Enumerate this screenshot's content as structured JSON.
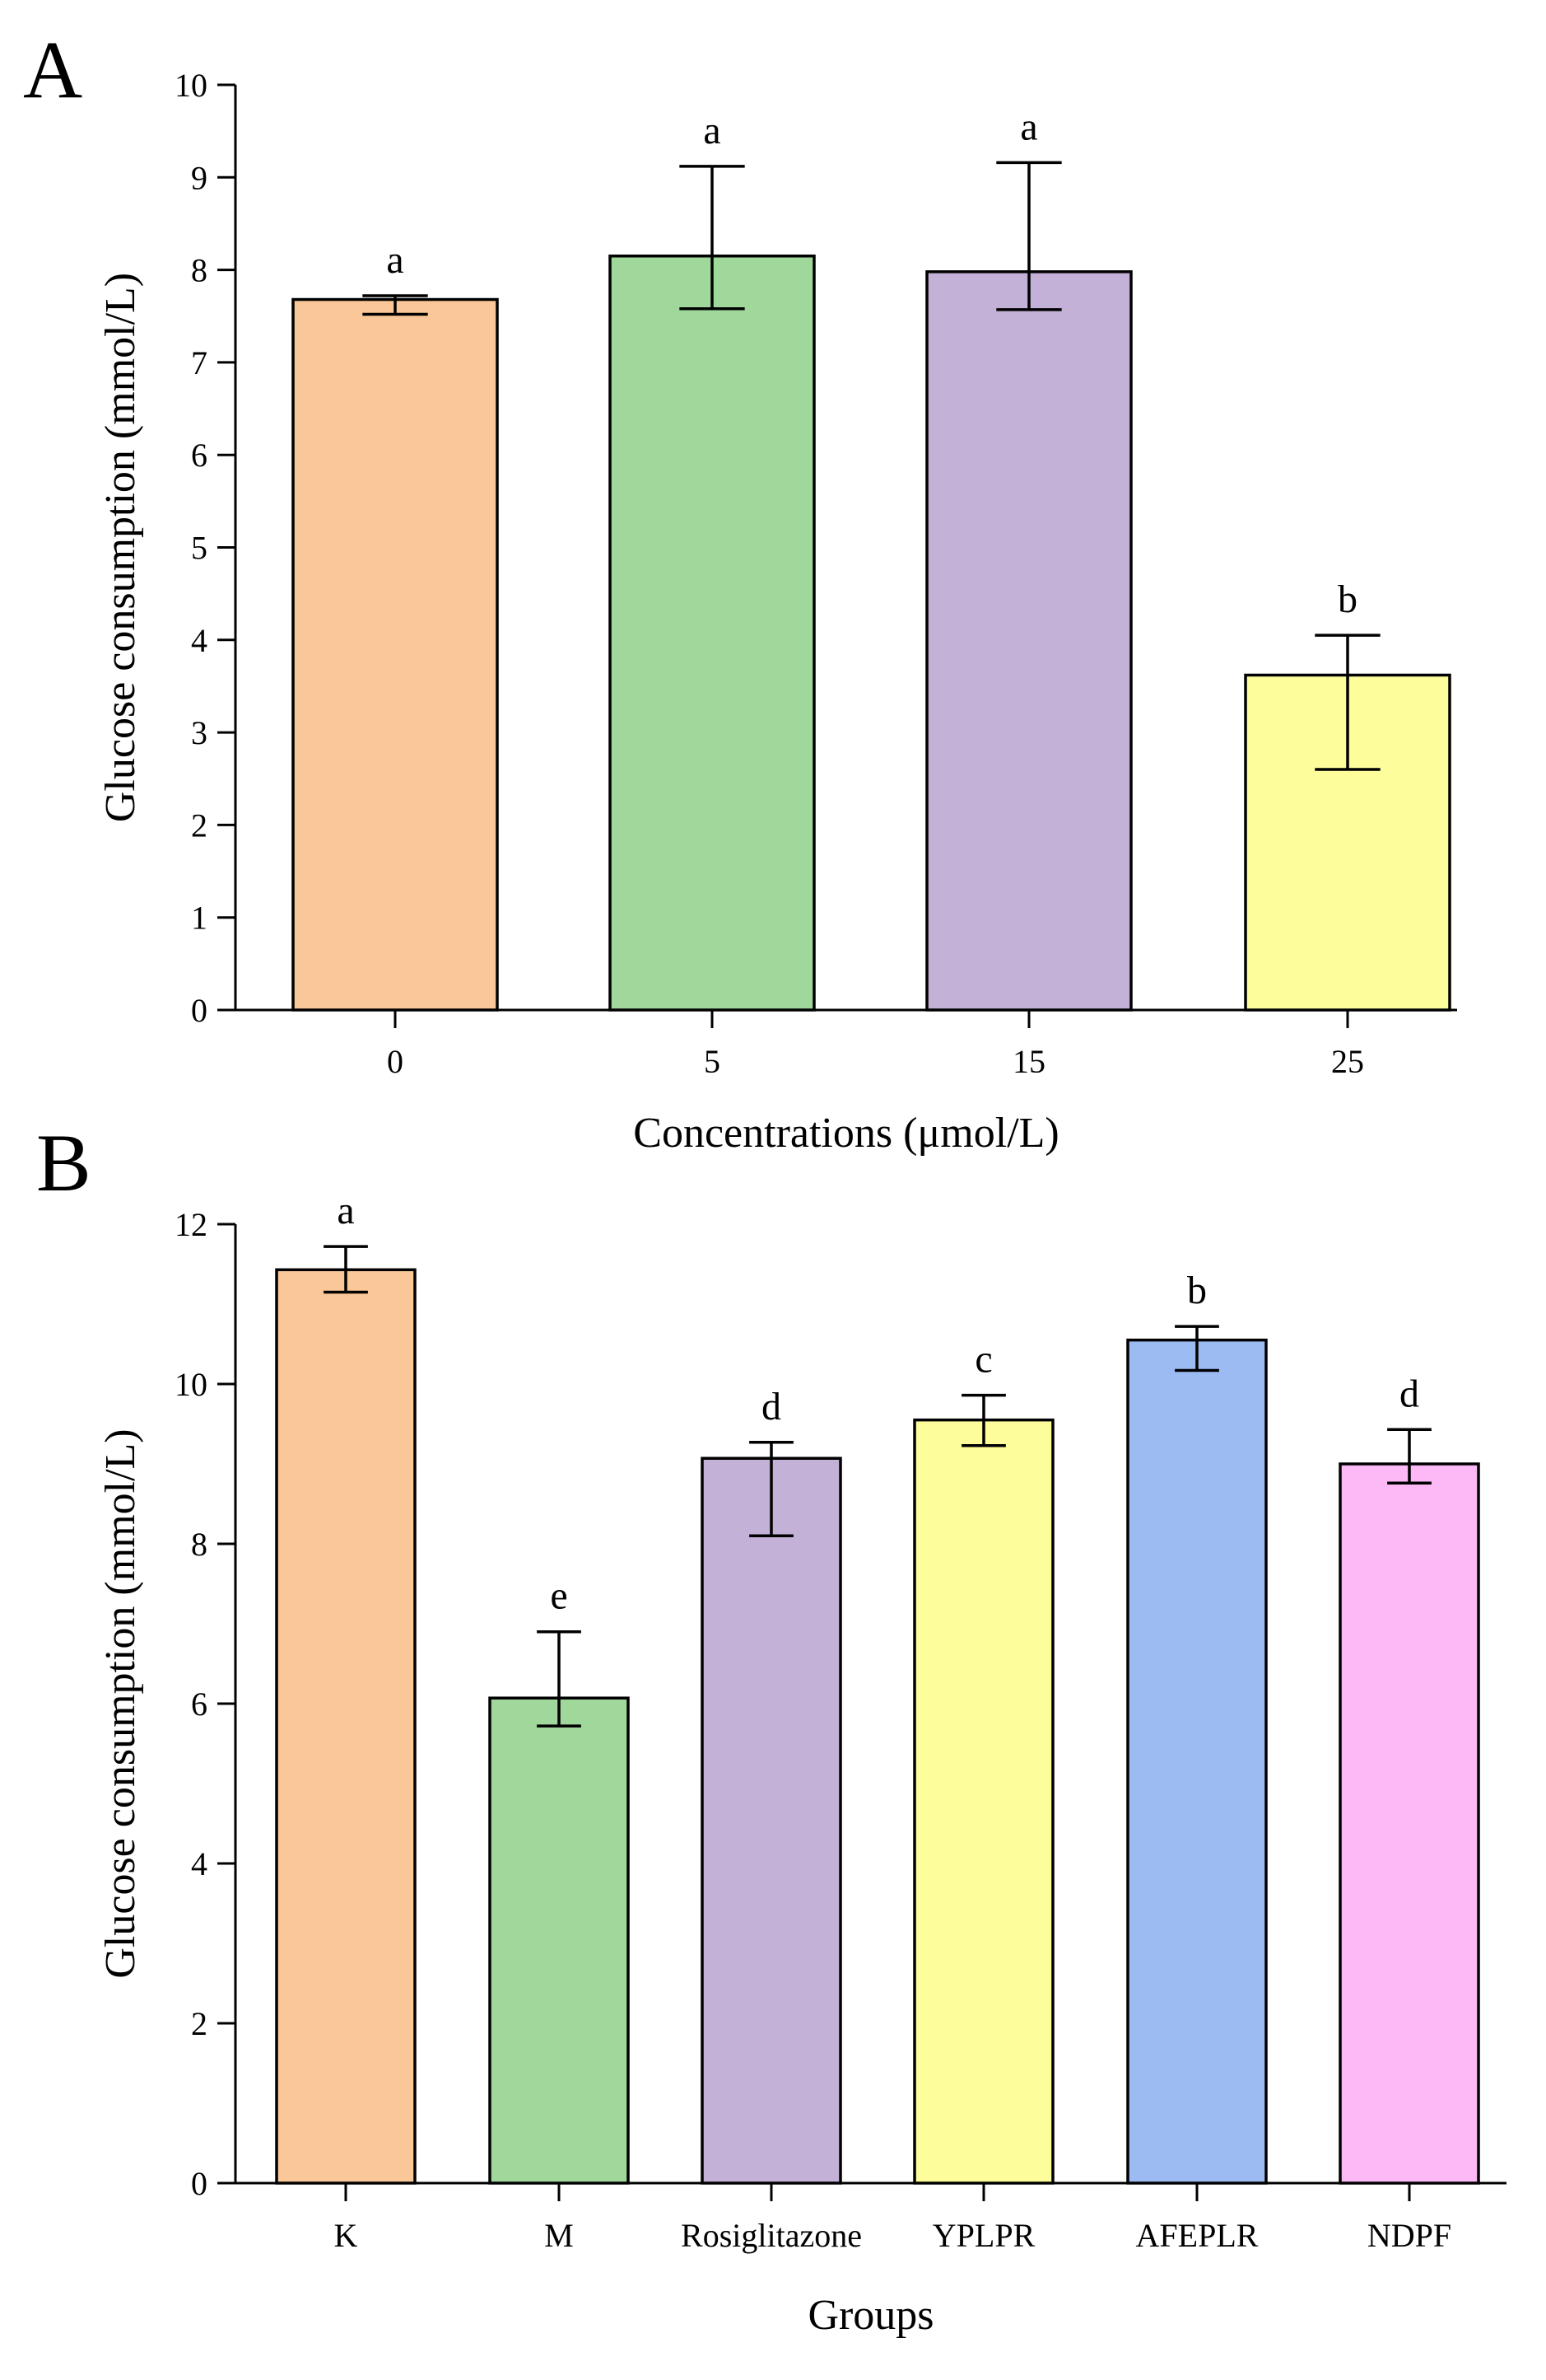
{
  "chart_data": [
    {
      "panel": "A",
      "type": "bar",
      "categories": [
        "0",
        "5",
        "15",
        "25"
      ],
      "values": [
        7.68,
        8.15,
        7.98,
        3.62
      ],
      "err_upper": [
        7.72,
        9.12,
        9.16,
        4.05
      ],
      "err_lower": [
        7.52,
        7.58,
        7.57,
        2.6
      ],
      "sig_labels": [
        "a",
        "a",
        "a",
        "b"
      ],
      "colors": [
        "#fac898",
        "#a0d89b",
        "#c3b1d7",
        "#fdfd9c"
      ],
      "xlabel": "Concentrations (μmol/L)",
      "ylabel": "Glucose consumption (mmol/L)",
      "ylim": [
        0,
        10
      ],
      "yticks": [
        0,
        1,
        2,
        3,
        4,
        5,
        6,
        7,
        8,
        9,
        10
      ],
      "grid": false
    },
    {
      "panel": "B",
      "type": "bar",
      "categories": [
        "K",
        "M",
        "Rosiglitazone",
        "YPLPR",
        "AFEPLR",
        "NDPF"
      ],
      "values": [
        11.43,
        6.07,
        9.07,
        9.55,
        10.55,
        9.0
      ],
      "err_upper": [
        11.72,
        6.9,
        9.27,
        9.86,
        10.72,
        9.43
      ],
      "err_lower": [
        11.15,
        5.72,
        8.1,
        9.23,
        10.17,
        8.76
      ],
      "sig_labels": [
        "a",
        "e",
        "d",
        "c",
        "b",
        "d"
      ],
      "colors": [
        "#fac898",
        "#a0d89b",
        "#c3b1d7",
        "#fdfd9c",
        "#9dbbf3",
        "#fdb9f6"
      ],
      "xlabel": "Groups",
      "ylabel": "Glucose consumption (mmol/L)",
      "ylim": [
        0,
        12
      ],
      "yticks": [
        0,
        2,
        4,
        6,
        8,
        10,
        12
      ],
      "grid": false
    }
  ]
}
